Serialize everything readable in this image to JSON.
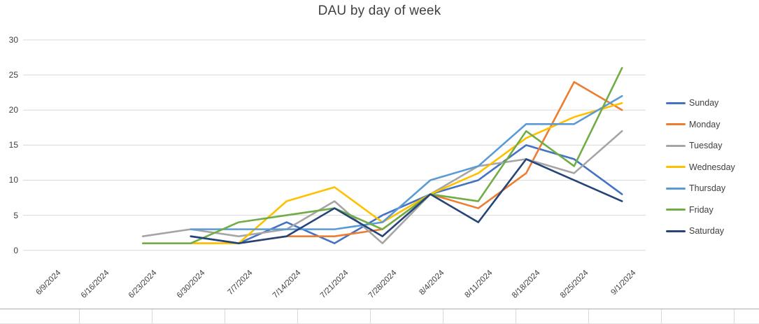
{
  "chart_data": {
    "type": "line",
    "title": "DAU by day of week",
    "categories": [
      "6/9/2024",
      "6/16/2024",
      "6/23/2024",
      "6/30/2024",
      "7/7/2024",
      "7/14/2024",
      "7/21/2024",
      "7/28/2024",
      "8/4/2024",
      "8/11/2024",
      "8/18/2024",
      "8/25/2024",
      "9/1/2024"
    ],
    "series": [
      {
        "name": "Sunday",
        "color": "#4472C4",
        "values": [
          null,
          null,
          null,
          2,
          1,
          4,
          1,
          5,
          8,
          10,
          15,
          13,
          8
        ]
      },
      {
        "name": "Monday",
        "color": "#ED7D31",
        "values": [
          null,
          null,
          null,
          1,
          1,
          2,
          2,
          3,
          8,
          6,
          11,
          24,
          20
        ]
      },
      {
        "name": "Tuesday",
        "color": "#A5A5A5",
        "values": [
          null,
          null,
          2,
          3,
          2,
          3,
          7,
          1,
          8,
          12,
          13,
          11,
          17
        ]
      },
      {
        "name": "Wednesday",
        "color": "#FFC000",
        "values": [
          null,
          null,
          null,
          1,
          1,
          7,
          9,
          4,
          8,
          11,
          16,
          19,
          21
        ]
      },
      {
        "name": "Thursday",
        "color": "#5B9BD5",
        "values": [
          null,
          null,
          null,
          3,
          3,
          3,
          3,
          4,
          10,
          12,
          18,
          18,
          22
        ]
      },
      {
        "name": "Friday",
        "color": "#70AD47",
        "values": [
          null,
          null,
          1,
          1,
          4,
          5,
          6,
          3,
          8,
          7,
          17,
          12,
          26
        ]
      },
      {
        "name": "Saturday",
        "color": "#264478",
        "values": [
          null,
          null,
          null,
          2,
          1,
          2,
          6,
          2,
          8,
          4,
          13,
          10,
          7
        ]
      }
    ],
    "y_ticks": [
      "0",
      "5",
      "10",
      "15",
      "20",
      "25",
      "30"
    ],
    "ylim": [
      0,
      30
    ],
    "grid": true,
    "gridline_color": "#D9D9D9",
    "legend_position": "right",
    "xlabel": "",
    "ylabel": ""
  }
}
